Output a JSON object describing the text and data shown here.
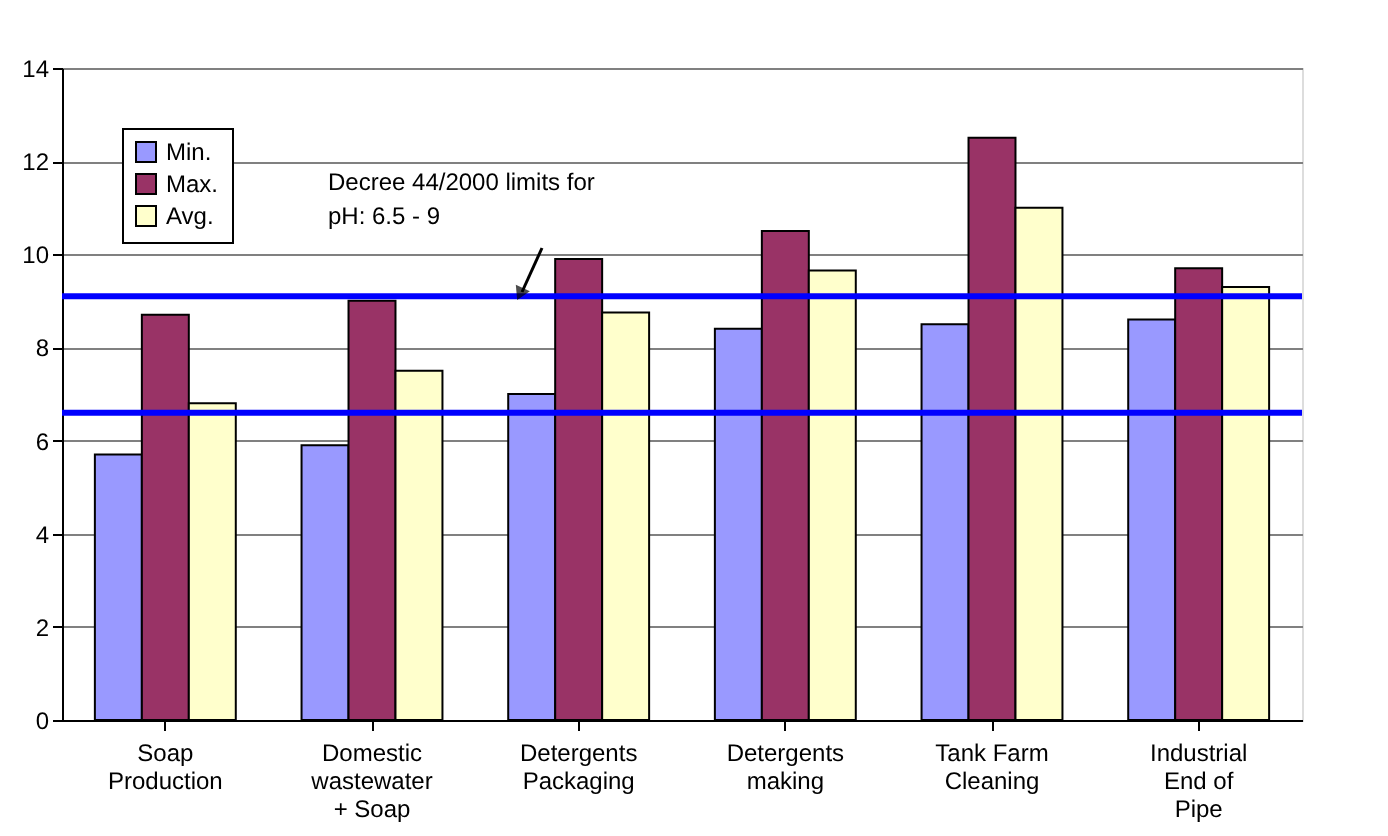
{
  "chart_data": {
    "type": "bar",
    "categories": [
      "Soap Production",
      "Domestic wastewater + Soap",
      "Detergents Packaging",
      "Detergents making",
      "Tank Farm Cleaning",
      "Industrial End of Pipe"
    ],
    "series": [
      {
        "name": "Min.",
        "color": "#9999ff",
        "values": [
          5.7,
          5.9,
          7.0,
          8.4,
          8.5,
          8.6
        ]
      },
      {
        "name": "Max.",
        "color": "#993366",
        "values": [
          8.7,
          9.0,
          9.9,
          10.5,
          12.5,
          9.7
        ]
      },
      {
        "name": "Avg.",
        "color": "#ffffcc",
        "values": [
          6.8,
          7.5,
          8.75,
          9.65,
          11.0,
          9.3
        ]
      }
    ],
    "ylim": [
      0,
      14
    ],
    "yticks": [
      0,
      2,
      4,
      6,
      8,
      10,
      12,
      14
    ],
    "ref_lines": [
      {
        "axis": "y",
        "value": 6.6,
        "color": "#0000ff"
      },
      {
        "axis": "y",
        "value": 9.1,
        "color": "#0000ff"
      }
    ],
    "annotations": [
      "Decree 44/2000 limits for pH: 6.5 - 9"
    ],
    "grid": "y",
    "legend": "top left"
  }
}
